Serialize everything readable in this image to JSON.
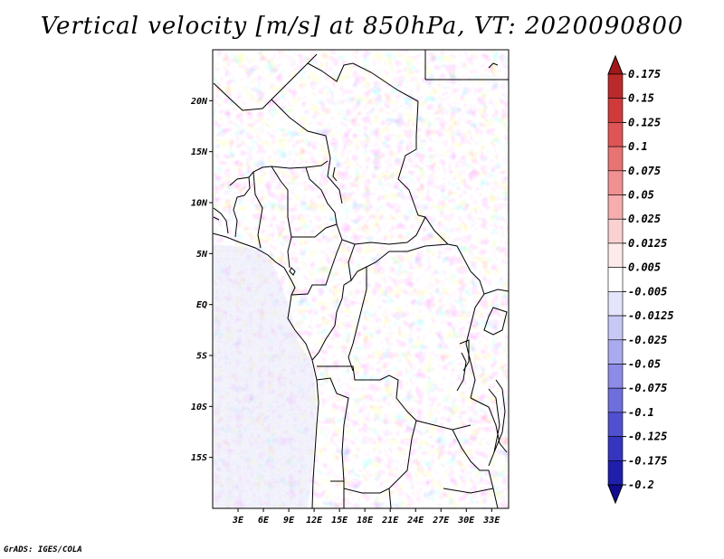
{
  "title": "Vertical velocity [m/s] at 850hPa, VT: 2020090800",
  "credit": "GrADS: IGES/COLA",
  "map": {
    "lon_range": [
      0,
      35
    ],
    "lat_range": [
      -20,
      25
    ],
    "lat_ticks": [
      {
        "value": 20,
        "label": "20N"
      },
      {
        "value": 15,
        "label": "15N"
      },
      {
        "value": 10,
        "label": "10N"
      },
      {
        "value": 5,
        "label": "5N"
      },
      {
        "value": 0,
        "label": "EQ"
      },
      {
        "value": -5,
        "label": "5S"
      },
      {
        "value": -10,
        "label": "10S"
      },
      {
        "value": -15,
        "label": "15S"
      }
    ],
    "lon_ticks": [
      {
        "value": 3,
        "label": "3E"
      },
      {
        "value": 6,
        "label": "6E"
      },
      {
        "value": 9,
        "label": "9E"
      },
      {
        "value": 12,
        "label": "12E"
      },
      {
        "value": 15,
        "label": "15E"
      },
      {
        "value": 18,
        "label": "18E"
      },
      {
        "value": 21,
        "label": "21E"
      },
      {
        "value": 24,
        "label": "24E"
      },
      {
        "value": 27,
        "label": "27E"
      },
      {
        "value": 30,
        "label": "30E"
      },
      {
        "value": 33,
        "label": "33E"
      }
    ]
  },
  "colorbar": {
    "levels": [
      "0.175",
      "0.15",
      "0.125",
      "0.1",
      "0.075",
      "0.05",
      "0.025",
      "0.0125",
      "0.005",
      "-0.005",
      "-0.0125",
      "-0.025",
      "-0.05",
      "-0.075",
      "-0.1",
      "-0.125",
      "-0.175",
      "-0.2"
    ],
    "colors": [
      "#a01818",
      "#bb2a2a",
      "#d03a3a",
      "#df5555",
      "#e87373",
      "#f09090",
      "#f5adad",
      "#fad0d0",
      "#fdebeb",
      "#ffffff",
      "#e4e4fa",
      "#c8c8f5",
      "#aaaaee",
      "#8c8ce6",
      "#6e6edc",
      "#5050d0",
      "#3535c0",
      "#1f1fac",
      "#110c90"
    ]
  }
}
